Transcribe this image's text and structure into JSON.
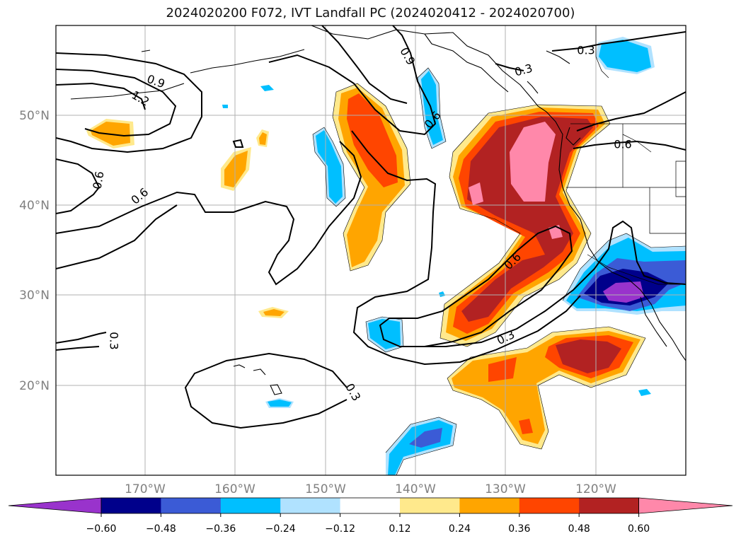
{
  "title": "2024020200 F072, IVT Landfall PC (2024020412 - 2024020700)",
  "map": {
    "lon_labels": [
      "170°W",
      "160°W",
      "150°W",
      "140°W",
      "130°W",
      "120°W"
    ],
    "lat_labels": [
      "50°N",
      "40°N",
      "30°N",
      "20°N"
    ],
    "contour_labels": [
      "0.9",
      "1.2",
      "0.6",
      "0.6",
      "0.9",
      "0.6",
      "0.3",
      "0.3",
      "0.6",
      "0.6",
      "0.3",
      "0.3",
      "0.3"
    ],
    "grid": true
  },
  "colorbar": {
    "ticks": [
      "−0.60",
      "−0.48",
      "−0.36",
      "−0.24",
      "−0.12",
      "0.12",
      "0.24",
      "0.36",
      "0.48",
      "0.60"
    ],
    "bins": [
      {
        "color": "#9933cc"
      },
      {
        "color": "#00008b"
      },
      {
        "color": "#3b5bd6"
      },
      {
        "color": "#00bfff"
      },
      {
        "color": "#b0e2ff"
      },
      {
        "color": "#ffffff"
      },
      {
        "color": "#ffe98c"
      },
      {
        "color": "#ffa500"
      },
      {
        "color": "#ff4500"
      },
      {
        "color": "#b22222"
      },
      {
        "color": "#ff88aa"
      }
    ]
  },
  "colors": {
    "coast": "#000000",
    "grid": "#b0b0b0",
    "tick_label": "#808080"
  }
}
